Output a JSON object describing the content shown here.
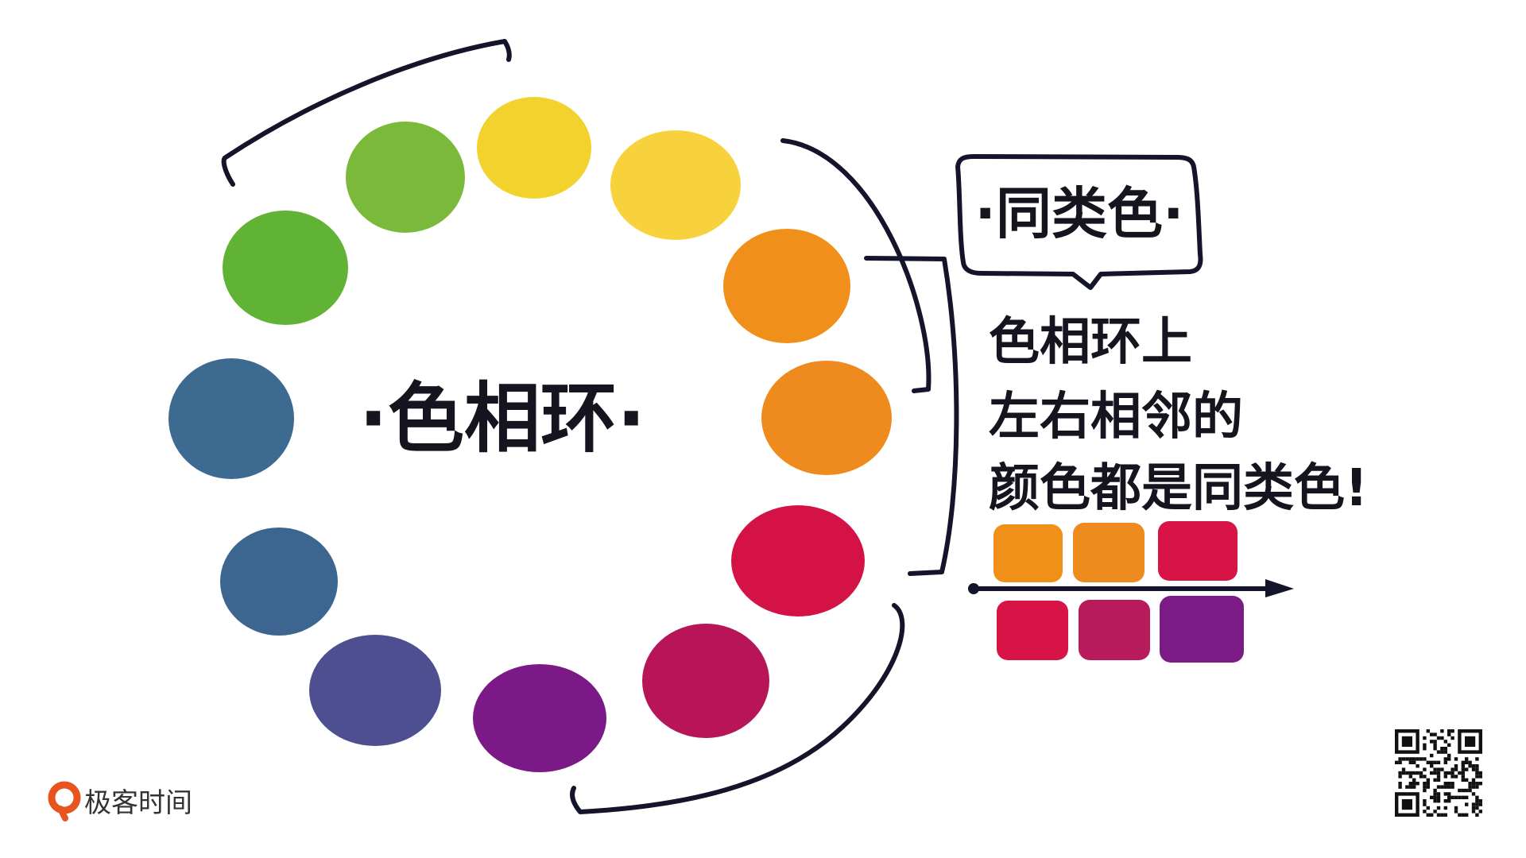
{
  "wheel": {
    "title": "·色相环·",
    "colors": [
      "#f4d22e",
      "#f7d23c",
      "#f0901a",
      "#ee8a1e",
      "#d41245",
      "#b81559",
      "#7b1a87",
      "#4d4f91",
      "#3c6690",
      "#3d6a90",
      "#60b335",
      "#7ab93a"
    ]
  },
  "callout": {
    "title": "·同类色·",
    "description_lines": [
      "色相环上",
      "左右相邻的",
      "颜色都是同类色!"
    ]
  },
  "swatches": {
    "top_row": [
      "#f09019",
      "#ee8b1f",
      "#d81346"
    ],
    "bottom_row": [
      "#d81346",
      "#b91a5c",
      "#7b1c86"
    ]
  },
  "brand": {
    "name": "极客时间",
    "accent": "#e8541e"
  },
  "qr": {
    "label": "qr-code"
  }
}
